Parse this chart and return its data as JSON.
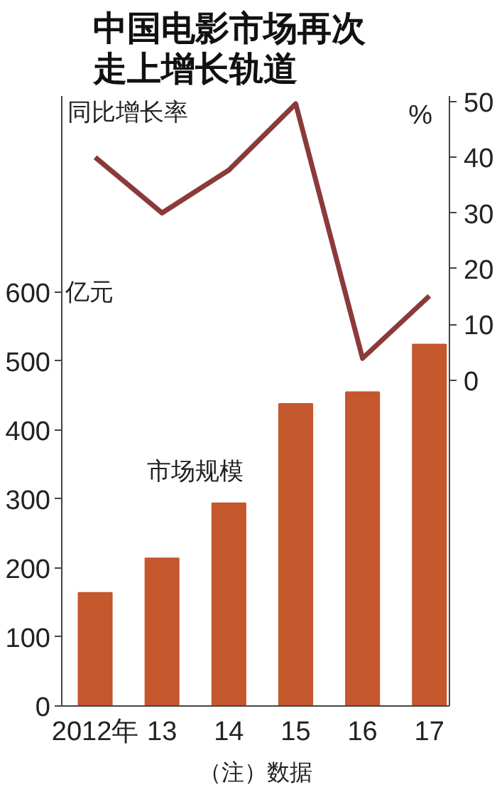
{
  "chart_data": {
    "type": "bar",
    "title": "中国电影市场再次走上增长轨道",
    "categories": [
      "2012年",
      "13",
      "14",
      "15",
      "16",
      "17"
    ],
    "series": [
      {
        "name": "市场规模",
        "color": "#c4572c",
        "values": [
          164,
          214,
          294,
          438,
          455,
          524
        ]
      },
      {
        "name": "同比增长率",
        "type": "line",
        "axis": "y2",
        "color": "#8b3a3a",
        "values": [
          40,
          30,
          37.7,
          49.6,
          3.9,
          15.1
        ]
      }
    ],
    "ylabel": "亿元",
    "ylim": [
      0,
      884
    ],
    "yticks": [
      0,
      100,
      200,
      300,
      400,
      500,
      600
    ],
    "y2lim": [
      -58.5,
      51
    ],
    "y2ticks": [
      0,
      10,
      20,
      30,
      40,
      50
    ],
    "annotations": [
      "（注）数据",
      "%"
    ],
    "grid": false,
    "legend": false,
    "marker": "none",
    "line_style": "solid"
  }
}
